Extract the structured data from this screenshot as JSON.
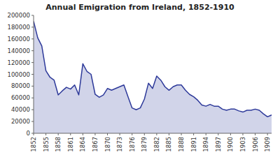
{
  "chart_data": {
    "type": "area",
    "title": "Annual Emigration from Ireland, 1852-1910",
    "color": "#2E3A9A",
    "xlim": [
      1852,
      1910
    ],
    "xticks": [
      1852,
      1855,
      1858,
      1861,
      1864,
      1867,
      1870,
      1873,
      1876,
      1879,
      1882,
      1885,
      1888,
      1891,
      1894,
      1897,
      1900,
      1903,
      1906,
      1909
    ],
    "ylim": [
      0,
      200000
    ],
    "yticks": [
      0,
      20000,
      40000,
      60000,
      80000,
      100000,
      120000,
      140000,
      160000,
      180000,
      200000
    ],
    "grid": false,
    "x": [
      1852,
      1853,
      1854,
      1855,
      1856,
      1857,
      1858,
      1859,
      1860,
      1861,
      1862,
      1863,
      1864,
      1865,
      1866,
      1867,
      1868,
      1869,
      1870,
      1871,
      1872,
      1873,
      1874,
      1875,
      1876,
      1877,
      1878,
      1879,
      1880,
      1881,
      1882,
      1883,
      1884,
      1885,
      1886,
      1887,
      1888,
      1889,
      1890,
      1891,
      1892,
      1893,
      1894,
      1895,
      1896,
      1897,
      1898,
      1899,
      1900,
      1901,
      1902,
      1903,
      1904,
      1905,
      1906,
      1907,
      1908,
      1909,
      1910
    ],
    "values": [
      190000,
      162000,
      148000,
      106000,
      95000,
      90000,
      65000,
      72000,
      78000,
      75000,
      82000,
      65000,
      118000,
      105000,
      100000,
      66000,
      61000,
      65000,
      76000,
      73000,
      76000,
      79000,
      82000,
      62000,
      43000,
      40000,
      43000,
      58000,
      85000,
      76000,
      97000,
      90000,
      79000,
      73000,
      79000,
      82000,
      82000,
      73000,
      66000,
      62000,
      56000,
      48000,
      46000,
      49000,
      46000,
      46000,
      41000,
      39000,
      41000,
      41000,
      38000,
      36000,
      39000,
      39000,
      41000,
      39000,
      33000,
      28000,
      31000
    ]
  }
}
